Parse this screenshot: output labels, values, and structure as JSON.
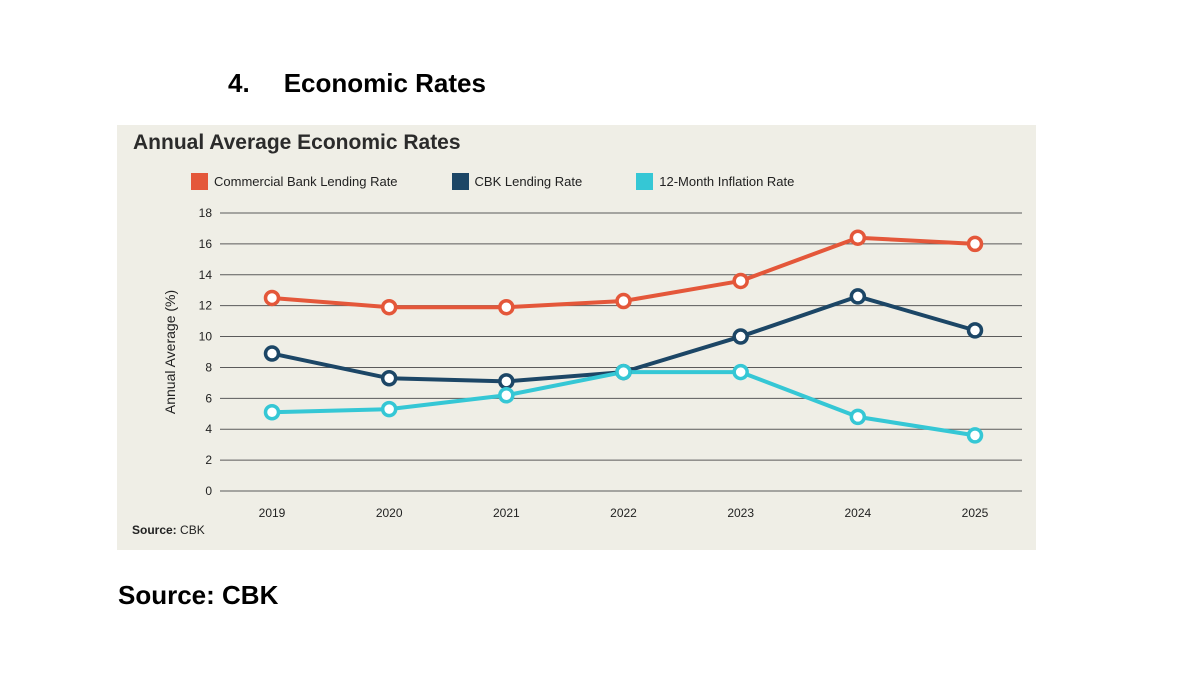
{
  "heading": {
    "number": "4.",
    "text": "Economic Rates"
  },
  "panel_source": {
    "label": "Source:",
    "value": "CBK"
  },
  "footer_source": "Source: CBK",
  "chart_data": {
    "type": "line",
    "title": "Annual Average Economic Rates",
    "xlabel": "",
    "ylabel": "Annual Average (%)",
    "ylim": [
      0,
      18
    ],
    "yticks": [
      0,
      2,
      4,
      6,
      8,
      10,
      12,
      14,
      16,
      18
    ],
    "grid": "horizontal",
    "legend_position": "top",
    "x": [
      "2019",
      "2020",
      "2021",
      "2022",
      "2023",
      "2024",
      "2025"
    ],
    "series": [
      {
        "name": "Commercial Bank Lending Rate",
        "color": "#e4573a",
        "values": [
          12.5,
          11.9,
          11.9,
          12.3,
          13.6,
          16.4,
          16.0
        ]
      },
      {
        "name": "CBK Lending Rate",
        "color": "#1c4666",
        "values": [
          8.9,
          7.3,
          7.1,
          7.7,
          10.0,
          12.6,
          10.4
        ]
      },
      {
        "name": "12-Month Inflation Rate",
        "color": "#35c7d5",
        "values": [
          5.1,
          5.3,
          6.2,
          7.7,
          7.7,
          4.8,
          3.6
        ]
      }
    ]
  }
}
